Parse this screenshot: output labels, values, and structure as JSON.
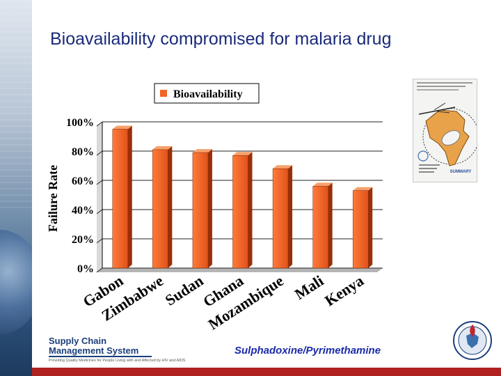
{
  "slide": {
    "title": "Bioavailability compromised for malaria drug",
    "drug_caption": "Sulphadoxine/Pyrimethamine",
    "logo_line1": "Supply Chain",
    "logo_line2": "Management System",
    "logo_tagline": "Providing Quality Medicines for People Living with and Affected by HIV and AIDS",
    "accent_red": "#b0221f",
    "title_color": "#1a2a7a"
  },
  "report_thumbnail": {
    "label": "SUMMARY"
  },
  "chart_data": {
    "type": "bar",
    "categories": [
      "Gabon",
      "Zimbabwe",
      "Sudan",
      "Ghana",
      "Mozambique",
      "Mali",
      "Kenya"
    ],
    "series": [
      {
        "name": "Bioavailability",
        "values": [
          95,
          81,
          79,
          77,
          68,
          56,
          53
        ],
        "color": "#f26522"
      }
    ],
    "ylabel": "Failure Rate",
    "ylim": [
      0,
      100
    ],
    "yticks": [
      "0%",
      "20%",
      "40%",
      "60%",
      "80%",
      "100%"
    ],
    "grid": true,
    "legend": "top"
  }
}
